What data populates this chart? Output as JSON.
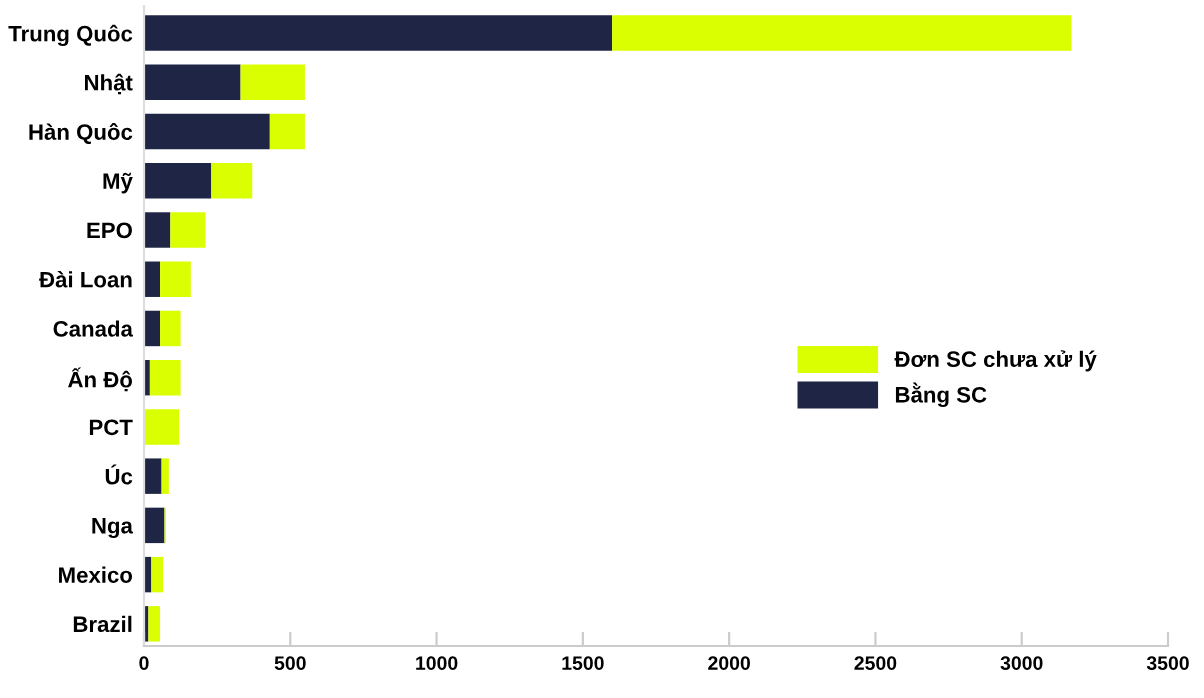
{
  "chart_data": {
    "type": "bar",
    "orientation": "horizontal",
    "stacked": true,
    "categories": [
      "Trung Quôc",
      "Nhật",
      "Hàn Quôc",
      "Mỹ",
      "EPO",
      "Đài Loan",
      "Canada",
      "Ấn Độ",
      "PCT",
      "Úc",
      "Nga",
      "Mexico",
      "Brazil"
    ],
    "series": [
      {
        "name": "Bằng SC",
        "color": "#1f2544",
        "values": [
          1600,
          330,
          430,
          230,
          90,
          55,
          55,
          20,
          0,
          60,
          70,
          25,
          15
        ]
      },
      {
        "name": "Đơn SC chưa xử lý",
        "color": "#d9ff00",
        "values": [
          1570,
          220,
          120,
          140,
          120,
          105,
          70,
          105,
          120,
          25,
          5,
          40,
          40
        ]
      }
    ],
    "xlim": [
      0,
      3500
    ],
    "xticks": [
      0,
      500,
      1000,
      1500,
      2000,
      2500,
      3000,
      3500
    ],
    "grid": false,
    "legend": "right"
  }
}
